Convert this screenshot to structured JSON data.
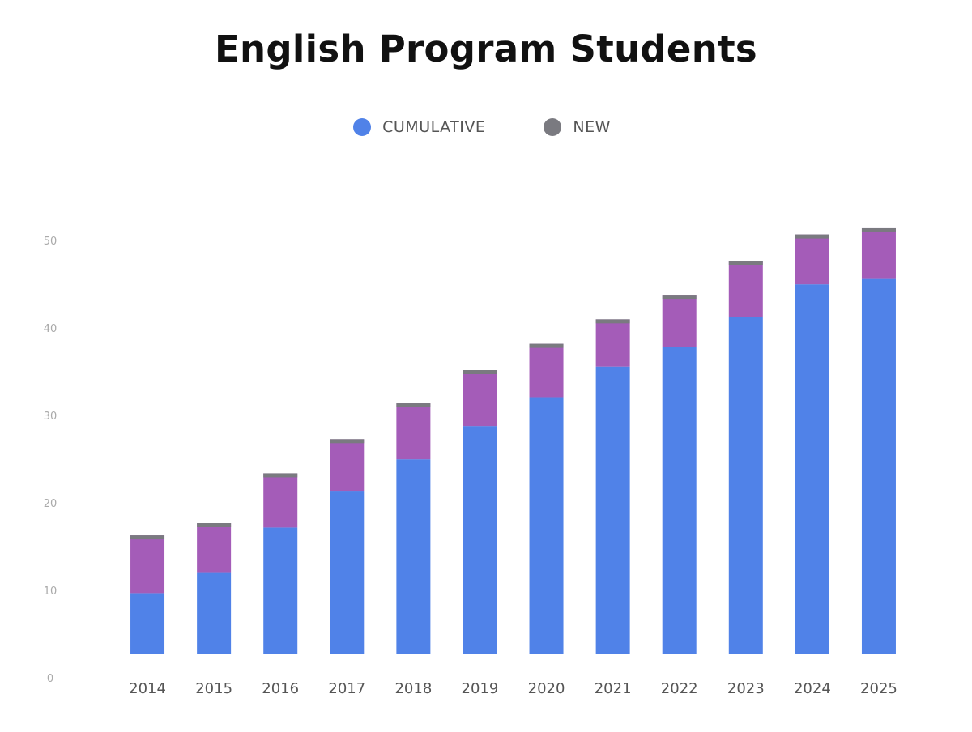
{
  "chart_data": {
    "type": "bar",
    "stacked": true,
    "title": "English Program Students",
    "xlabel": "",
    "ylabel": "",
    "categories": [
      "2014",
      "2015",
      "2016",
      "2017",
      "2018",
      "2019",
      "2020",
      "2021",
      "2022",
      "2023",
      "2024",
      "2025"
    ],
    "series": [
      {
        "name": "CUMULATIVE",
        "color": "#5082E8",
        "values": [
          7,
          9.3,
          14.5,
          18.7,
          22.3,
          26.1,
          29.4,
          32.9,
          35.1,
          38.6,
          42.3,
          43.0
        ]
      },
      {
        "name": "NEW",
        "color": "#A45CB8",
        "cap_color": "#7A7A80",
        "values": [
          6.6,
          5.7,
          6.2,
          5.9,
          6.4,
          6.4,
          6.1,
          5.4,
          6.0,
          6.4,
          5.7,
          5.8
        ]
      }
    ],
    "y_ticks": [
      "0",
      "10",
      "20",
      "30",
      "40",
      "50"
    ],
    "ylim": [
      0,
      50
    ],
    "grid": false,
    "legend": "top-center"
  }
}
